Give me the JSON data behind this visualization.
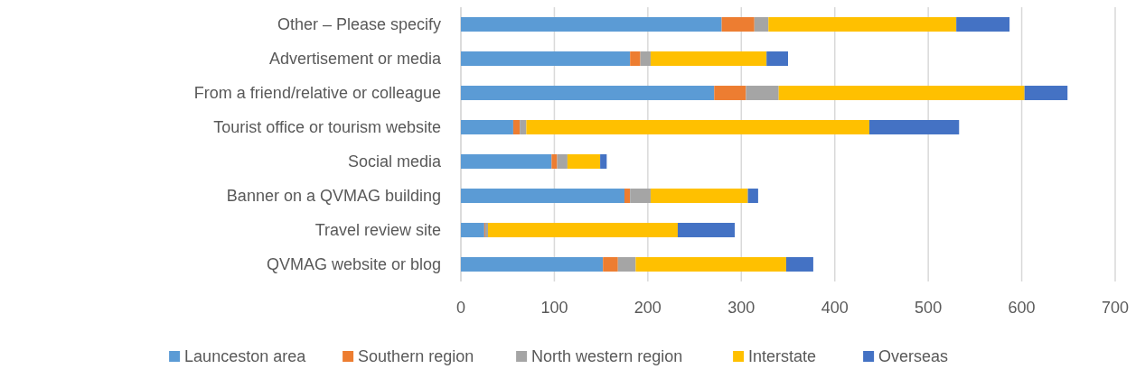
{
  "chart_data": {
    "type": "bar",
    "orientation": "horizontal",
    "stacked": true,
    "categories": [
      "Other – Please specify",
      "Advertisement or media",
      "From a friend/relative or colleague",
      "Tourist office or tourism website",
      "Social media",
      "Banner on a QVMAG building",
      "Travel review site",
      "QVMAG website or blog"
    ],
    "series": [
      {
        "name": "Launceston area",
        "color": "#5b9bd5",
        "values": [
          279,
          181,
          271,
          56,
          97,
          175,
          25,
          152
        ]
      },
      {
        "name": "Southern region",
        "color": "#ed7d31",
        "values": [
          35,
          11,
          34,
          7,
          6,
          6,
          1,
          16
        ]
      },
      {
        "name": "North western region",
        "color": "#a5a5a5",
        "values": [
          15,
          11,
          35,
          7,
          11,
          22,
          3,
          19
        ]
      },
      {
        "name": "Interstate",
        "color": "#ffc000",
        "values": [
          201,
          124,
          263,
          367,
          35,
          104,
          203,
          161
        ]
      },
      {
        "name": "Overseas",
        "color": "#4472c4",
        "values": [
          57,
          23,
          46,
          96,
          7,
          11,
          61,
          29
        ]
      }
    ],
    "xlim": [
      0,
      700
    ],
    "xticks": [
      0,
      100,
      200,
      300,
      400,
      500,
      600,
      700
    ],
    "grid": "x",
    "legend": "bottom"
  }
}
